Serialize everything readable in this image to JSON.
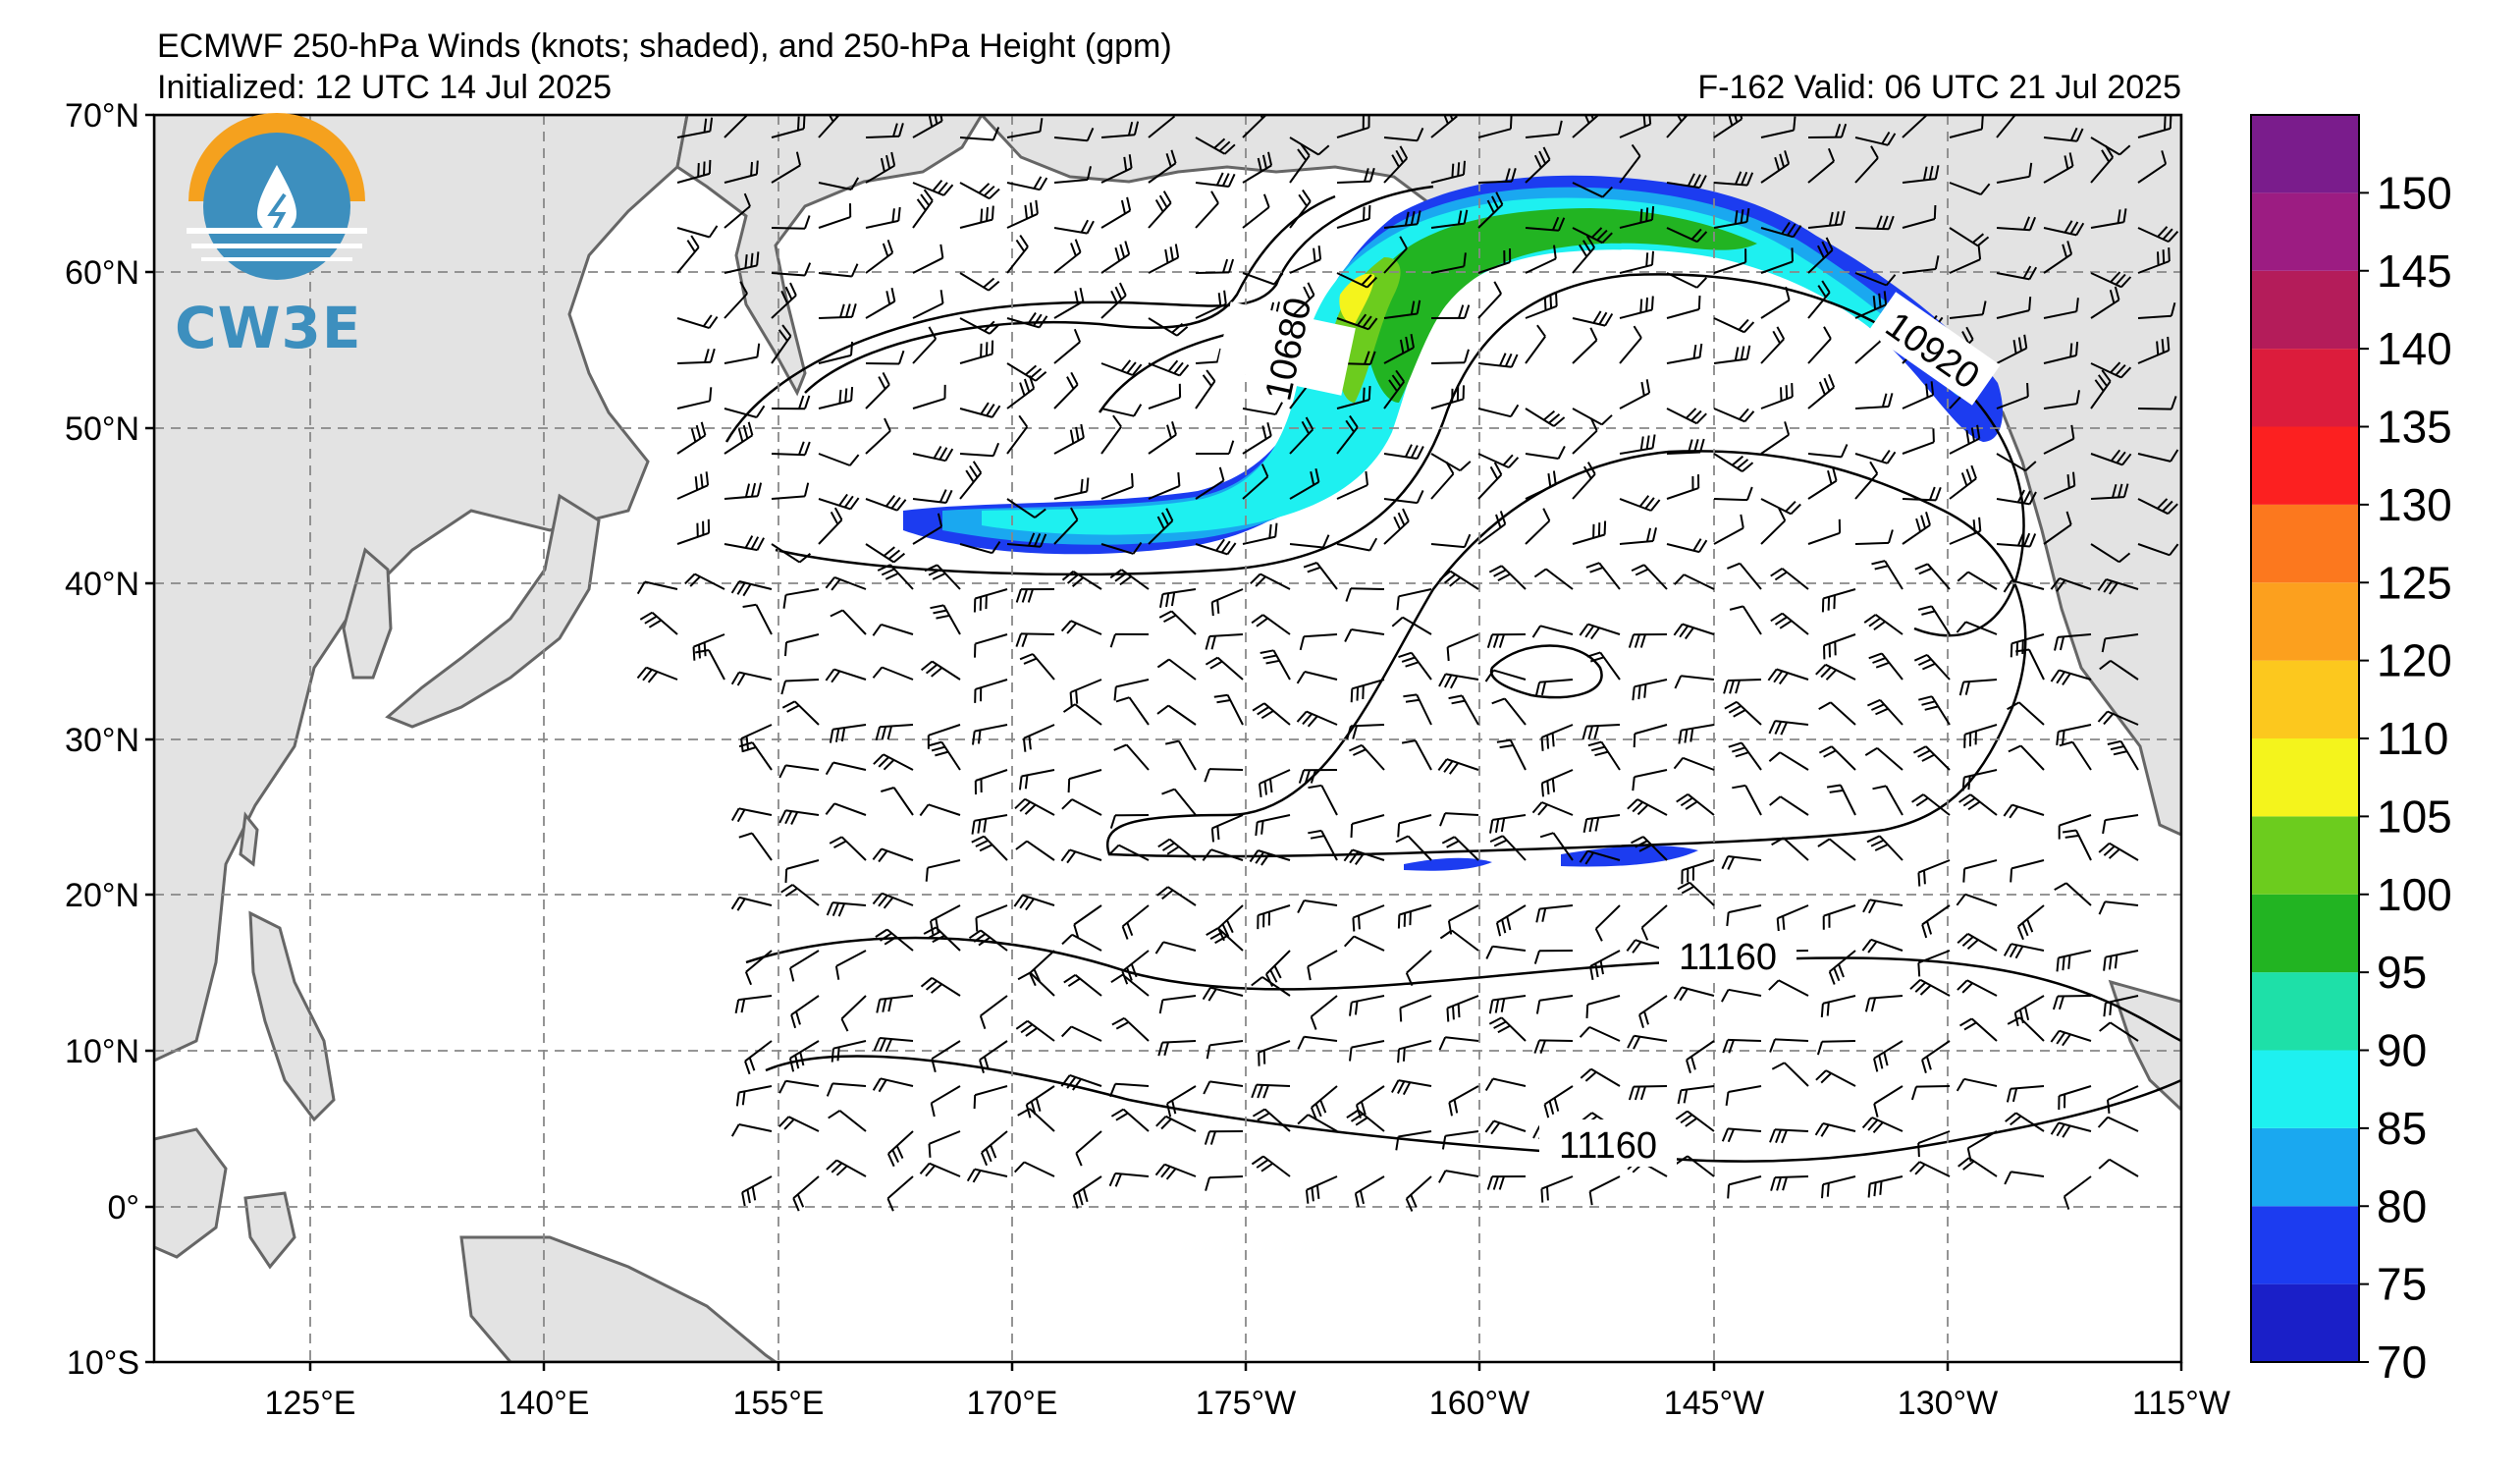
{
  "header": {
    "title": "ECMWF 250-hPa Winds (knots; shaded), and 250-hPa Height (gpm)",
    "initialized": "Initialized: 12 UTC 14 Jul 2025",
    "valid": "F-162  Valid: 06 UTC 21 Jul 2025"
  },
  "logo": {
    "text": "CW3E",
    "icon": "cw3e-logo-icon"
  },
  "axes": {
    "lat_labels": [
      "70°N",
      "60°N",
      "50°N",
      "40°N",
      "30°N",
      "20°N",
      "10°N",
      "0°",
      "10°S"
    ],
    "lon_labels": [
      "125°E",
      "140°E",
      "155°E",
      "170°E",
      "175°W",
      "160°W",
      "145°W",
      "130°W",
      "115°W"
    ],
    "lat_range": [
      -10,
      70
    ],
    "lon_range": [
      115,
      245
    ]
  },
  "contour_labels": [
    "10680",
    "10920",
    "11160",
    "11160"
  ],
  "colorbar": {
    "tick_labels": [
      "70",
      "75",
      "80",
      "85",
      "90",
      "95",
      "100",
      "105",
      "110",
      "120",
      "125",
      "130",
      "135",
      "140",
      "145",
      "150"
    ],
    "colors": [
      "#1a1fc8",
      "#1c3cf0",
      "#1aa8f0",
      "#1ef0f0",
      "#1ee0a8",
      "#22b422",
      "#6ccc1e",
      "#f4f41c",
      "#fcc81e",
      "#fca01e",
      "#fc781e",
      "#fc2020",
      "#dc1c3c",
      "#b41c5a",
      "#9c1c82",
      "#7a1c8c"
    ]
  },
  "colors": {
    "land": "#e3e3e3",
    "coast": "#666666",
    "grid": "#888888",
    "logo_blue": "#3d8fbe",
    "logo_orange": "#f5a11e"
  }
}
